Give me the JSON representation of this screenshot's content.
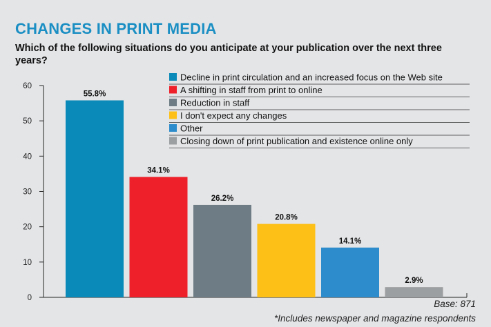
{
  "header": {
    "title": "CHANGES IN PRINT MEDIA",
    "subtitle": "Which of the following situations do you anticipate at your publication over the next three years?"
  },
  "notes": {
    "base": "Base: 871",
    "footnote": "*Includes newspaper and magazine respondents"
  },
  "chart_data": {
    "type": "bar",
    "title": "CHANGES IN PRINT MEDIA",
    "xlabel": "",
    "ylabel": "",
    "ylim": [
      0,
      60
    ],
    "yticks": [
      0,
      10,
      20,
      30,
      40,
      50,
      60
    ],
    "grid": false,
    "legend_position": "top-right",
    "categories": [
      "Decline in print circulation and an increased focus on the Web site",
      "A shifting in staff from print to online",
      "Reduction in staff",
      "I don't expect any changes",
      "Other",
      "Closing down of print publication and existence online only"
    ],
    "values": [
      55.8,
      34.1,
      26.2,
      20.8,
      14.1,
      2.9
    ],
    "labels": [
      "55.8%",
      "34.1%",
      "26.2%",
      "20.8%",
      "14.1%",
      "2.9%"
    ],
    "colors": [
      "#0a8ab8",
      "#ee2029",
      "#6e7c85",
      "#fcc016",
      "#2d8dcc",
      "#9c9fa1"
    ]
  }
}
